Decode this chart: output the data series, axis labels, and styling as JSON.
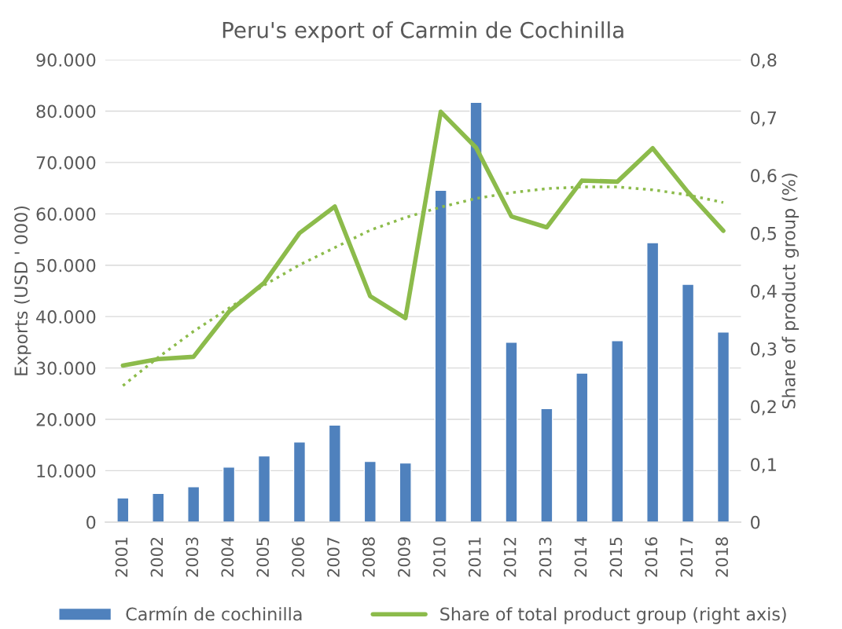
{
  "chart_data": {
    "type": "bar",
    "title": "Peru's export of Carmin de Cochinilla",
    "ylabel": "Exports (USD ' 000)",
    "y2label": "Share of product group (%)",
    "categories": [
      "2001",
      "2002",
      "2003",
      "2004",
      "2005",
      "2006",
      "2007",
      "2008",
      "2009",
      "2010",
      "2011",
      "2012",
      "2013",
      "2014",
      "2015",
      "2016",
      "2017",
      "2018"
    ],
    "series": [
      {
        "name": "Carmín de cochinilla",
        "color": "#4f81bd",
        "values": [
          4700,
          5600,
          6900,
          10700,
          12900,
          15600,
          18900,
          11800,
          11500,
          64600,
          81700,
          35000,
          22100,
          29000,
          35300,
          54400,
          46300,
          37000
        ]
      },
      {
        "name": "Share of total product group (right axis)",
        "type": "line",
        "axis": "y2",
        "color": "#8cbb4b",
        "line_style": "solid",
        "values": [
          0.271,
          0.282,
          0.286,
          0.364,
          0.414,
          0.5,
          0.546,
          0.391,
          0.353,
          0.71,
          0.648,
          0.529,
          0.51,
          0.591,
          0.589,
          0.647,
          0.571,
          0.504
        ]
      },
      {
        "type": "line",
        "axis": "y2",
        "color": "#8cbb4b",
        "line_style": "dotted",
        "values": [
          0.236,
          0.285,
          0.33,
          0.37,
          0.41,
          0.445,
          0.475,
          0.505,
          0.527,
          0.545,
          0.56,
          0.57,
          0.577,
          0.58,
          0.58,
          0.575,
          0.566,
          0.553
        ]
      }
    ],
    "ylim": [
      0,
      90000
    ],
    "yticks": [
      {
        "value": 0,
        "label": "0"
      },
      {
        "value": 10000,
        "label": "10.000"
      },
      {
        "value": 20000,
        "label": "20.000"
      },
      {
        "value": 30000,
        "label": "30.000"
      },
      {
        "value": 40000,
        "label": "40.000"
      },
      {
        "value": 50000,
        "label": "50.000"
      },
      {
        "value": 60000,
        "label": "60.000"
      },
      {
        "value": 70000,
        "label": "70.000"
      },
      {
        "value": 80000,
        "label": "80.000"
      },
      {
        "value": 90000,
        "label": "90.000"
      }
    ],
    "y2lim": [
      0,
      0.8
    ],
    "y2ticks": [
      {
        "value": 0,
        "label": "0"
      },
      {
        "value": 0.1,
        "label": "0,1"
      },
      {
        "value": 0.2,
        "label": "0,2"
      },
      {
        "value": 0.3,
        "label": "0,3"
      },
      {
        "value": 0.4,
        "label": "0,4"
      },
      {
        "value": 0.5,
        "label": "0,5"
      },
      {
        "value": 0.6,
        "label": "0,6"
      },
      {
        "value": 0.7,
        "label": "0,7"
      },
      {
        "value": 0.8,
        "label": "0,8"
      }
    ],
    "grid": "y",
    "legend": "bottom"
  }
}
